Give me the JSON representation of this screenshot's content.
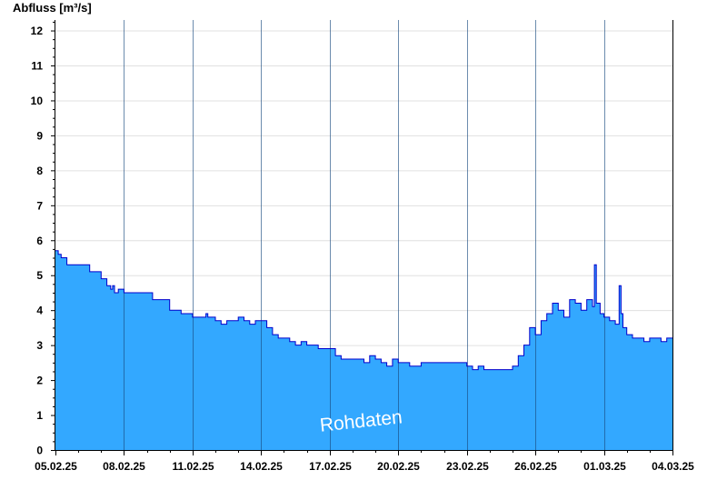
{
  "chart_data": {
    "type": "area",
    "ylabel": "Abfluss [m³/s]",
    "ylim": [
      0,
      12.3
    ],
    "yticks": [
      0,
      1,
      2,
      3,
      4,
      5,
      6,
      7,
      8,
      9,
      10,
      11,
      12
    ],
    "xlim": [
      "2025-02-05",
      "2025-03-04"
    ],
    "xticks": [
      "05.02.25",
      "08.02.25",
      "11.02.25",
      "14.02.25",
      "17.02.25",
      "20.02.25",
      "23.02.25",
      "26.02.25",
      "01.03.25",
      "04.03.25"
    ],
    "grid": true,
    "watermark": "Rohdaten",
    "colors": {
      "fill": "#33a8ff",
      "line": "#0000cc",
      "grid": "#e0e0e0"
    },
    "series": [
      {
        "x": [
          "2025-02-05T00:00",
          "2025-02-05T03:00",
          "2025-02-05T06:00",
          "2025-02-05T12:00",
          "2025-02-06T00:00",
          "2025-02-06T12:00",
          "2025-02-07T00:00",
          "2025-02-07T06:00",
          "2025-02-07T08:00",
          "2025-02-07T10:00",
          "2025-02-07T12:00",
          "2025-02-07T14:00",
          "2025-02-07T18:00",
          "2025-02-08T00:00",
          "2025-02-08T12:00",
          "2025-02-09T06:00",
          "2025-02-09T12:00",
          "2025-02-10T00:00",
          "2025-02-10T12:00",
          "2025-02-11T00:00",
          "2025-02-11T12:00",
          "2025-02-11T14:00",
          "2025-02-11T16:00",
          "2025-02-12T00:00",
          "2025-02-12T06:00",
          "2025-02-12T12:00",
          "2025-02-13T00:00",
          "2025-02-13T06:00",
          "2025-02-13T12:00",
          "2025-02-13T18:00",
          "2025-02-14T00:00",
          "2025-02-14T06:00",
          "2025-02-14T12:00",
          "2025-02-14T18:00",
          "2025-02-15T00:00",
          "2025-02-15T06:00",
          "2025-02-15T12:00",
          "2025-02-15T18:00",
          "2025-02-16T00:00",
          "2025-02-16T12:00",
          "2025-02-17T00:00",
          "2025-02-17T06:00",
          "2025-02-17T12:00",
          "2025-02-18T00:00",
          "2025-02-18T12:00",
          "2025-02-18T18:00",
          "2025-02-19T00:00",
          "2025-02-19T06:00",
          "2025-02-19T12:00",
          "2025-02-19T18:00",
          "2025-02-20T00:00",
          "2025-02-20T06:00",
          "2025-02-20T12:00",
          "2025-02-21T00:00",
          "2025-02-21T12:00",
          "2025-02-22T00:00",
          "2025-02-22T12:00",
          "2025-02-23T00:00",
          "2025-02-23T06:00",
          "2025-02-23T12:00",
          "2025-02-23T18:00",
          "2025-02-24T00:00",
          "2025-02-24T12:00",
          "2025-02-25T00:00",
          "2025-02-25T06:00",
          "2025-02-25T12:00",
          "2025-02-25T18:00",
          "2025-02-26T00:00",
          "2025-02-26T06:00",
          "2025-02-26T12:00",
          "2025-02-26T18:00",
          "2025-02-27T00:00",
          "2025-02-27T06:00",
          "2025-02-27T12:00",
          "2025-02-27T18:00",
          "2025-02-28T00:00",
          "2025-02-28T06:00",
          "2025-02-28T12:00",
          "2025-02-28T14:00",
          "2025-02-28T16:00",
          "2025-02-28T20:00",
          "2025-03-01T00:00",
          "2025-03-01T06:00",
          "2025-03-01T12:00",
          "2025-03-01T16:00",
          "2025-03-01T18:00",
          "2025-03-01T20:00",
          "2025-03-02T00:00",
          "2025-03-02T06:00",
          "2025-03-02T12:00",
          "2025-03-02T18:00",
          "2025-03-03T00:00",
          "2025-03-03T06:00",
          "2025-03-03T12:00",
          "2025-03-03T18:00",
          "2025-03-04T00:00"
        ],
        "values": [
          5.7,
          5.6,
          5.5,
          5.3,
          5.3,
          5.1,
          4.9,
          4.7,
          4.7,
          4.6,
          4.7,
          4.5,
          4.6,
          4.5,
          4.5,
          4.3,
          4.3,
          4.0,
          3.9,
          3.8,
          3.8,
          3.9,
          3.8,
          3.7,
          3.6,
          3.7,
          3.8,
          3.7,
          3.6,
          3.7,
          3.7,
          3.5,
          3.3,
          3.2,
          3.2,
          3.1,
          3.0,
          3.1,
          3.0,
          2.9,
          2.9,
          2.7,
          2.6,
          2.6,
          2.5,
          2.7,
          2.6,
          2.5,
          2.4,
          2.6,
          2.5,
          2.5,
          2.4,
          2.5,
          2.5,
          2.5,
          2.5,
          2.4,
          2.3,
          2.4,
          2.3,
          2.3,
          2.3,
          2.4,
          2.7,
          3.0,
          3.5,
          3.3,
          3.7,
          3.9,
          4.2,
          4.0,
          3.8,
          4.3,
          4.2,
          4.0,
          4.3,
          4.1,
          5.3,
          4.2,
          3.9,
          3.8,
          3.7,
          3.6,
          4.7,
          3.9,
          3.5,
          3.3,
          3.2,
          3.2,
          3.1,
          3.2,
          3.2,
          3.1,
          3.2,
          3.2
        ]
      }
    ]
  }
}
